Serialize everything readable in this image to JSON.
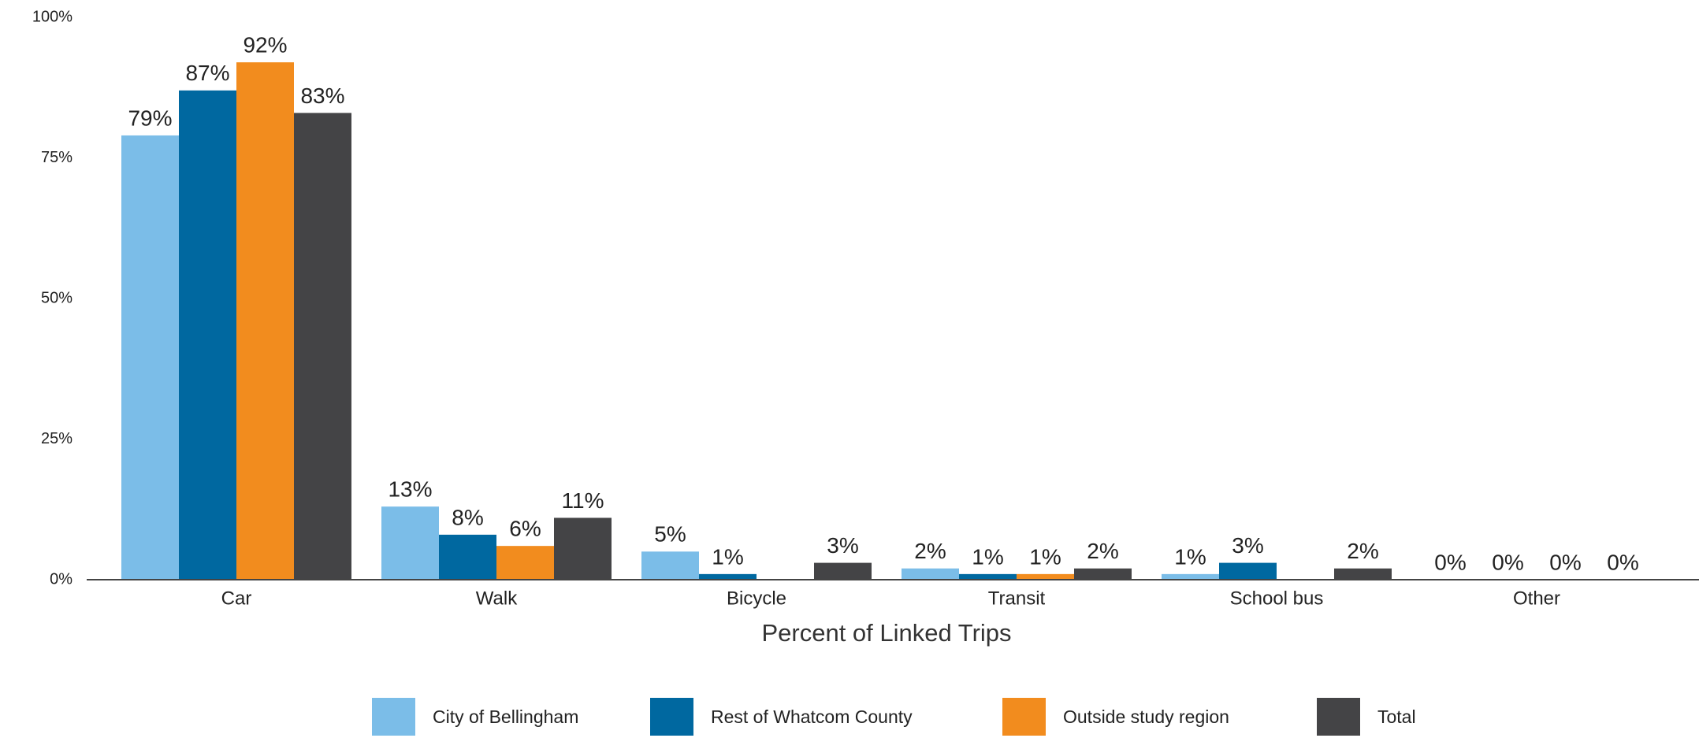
{
  "chart_data": {
    "type": "bar",
    "x_label": "Percent of Linked Trips",
    "categories": [
      "Car",
      "Walk",
      "Bicycle",
      "Transit",
      "School bus",
      "Other"
    ],
    "series": [
      {
        "name": "City of Bellingham",
        "color": "#7bbde8",
        "values": [
          79,
          13,
          5,
          2,
          1,
          0
        ],
        "value_labels": [
          "79%",
          "13%",
          "5%",
          "2%",
          "1%",
          "0%"
        ]
      },
      {
        "name": "Rest of Whatcom County",
        "color": "#0068a0",
        "values": [
          87,
          8,
          1,
          1,
          3,
          0
        ],
        "value_labels": [
          "87%",
          "8%",
          "1%",
          "1%",
          "3%",
          "0%"
        ]
      },
      {
        "name": "Outside study region",
        "color": "#f28c1e",
        "values": [
          92,
          6,
          null,
          1,
          null,
          0
        ],
        "value_labels": [
          "92%",
          "6%",
          null,
          "1%",
          null,
          "0%"
        ]
      },
      {
        "name": "Total",
        "color": "#444446",
        "values": [
          83,
          11,
          3,
          2,
          2,
          0
        ],
        "value_labels": [
          "83%",
          "11%",
          "3%",
          "2%",
          "2%",
          "0%"
        ]
      }
    ],
    "ylim": [
      0,
      100
    ],
    "yticks": [
      {
        "value": 0,
        "label": "0%"
      },
      {
        "value": 25,
        "label": "25%"
      },
      {
        "value": 50,
        "label": "50%"
      },
      {
        "value": 75,
        "label": "75%"
      },
      {
        "value": 100,
        "label": "100%"
      }
    ],
    "grid": false,
    "legend": "bottom"
  }
}
